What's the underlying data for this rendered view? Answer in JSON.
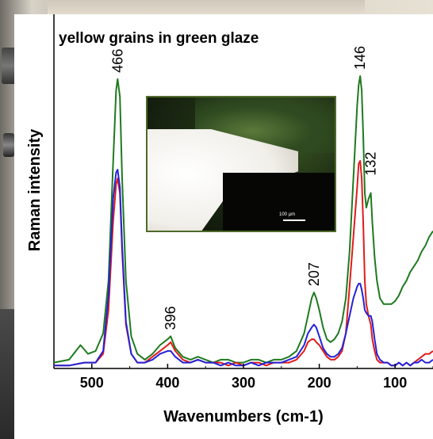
{
  "chart_data": {
    "type": "line",
    "title": "yellow grains in green glaze",
    "xlabel": "Wavenumbers (cm-1)",
    "ylabel": "Raman intensity",
    "xlim": [
      550,
      50
    ],
    "ylim": [
      0,
      1
    ],
    "x_reversed": true,
    "grid": false,
    "legend": "none",
    "x_ticks": [
      500,
      400,
      300,
      200,
      100
    ],
    "x_tick_labels": [
      "500",
      "400",
      "300",
      "200",
      "100"
    ],
    "peak_labels": [
      {
        "x": 466,
        "text": "466"
      },
      {
        "x": 396,
        "text": "396"
      },
      {
        "x": 207,
        "text": "207"
      },
      {
        "x": 146,
        "text": "146"
      },
      {
        "x": 132,
        "text": "132"
      }
    ],
    "inset_scale_label": "100 µm",
    "series": [
      {
        "color": "#1f7a1f",
        "x": [
          550,
          530,
          515,
          505,
          495,
          485,
          478,
          472,
          468,
          466,
          463,
          460,
          455,
          448,
          440,
          430,
          420,
          410,
          400,
          396,
          390,
          380,
          370,
          360,
          350,
          340,
          330,
          320,
          310,
          300,
          290,
          280,
          270,
          260,
          250,
          240,
          230,
          220,
          215,
          210,
          207,
          204,
          200,
          195,
          190,
          185,
          180,
          175,
          170,
          165,
          160,
          155,
          150,
          148,
          146,
          144,
          142,
          140,
          138,
          135,
          132,
          130,
          127,
          124,
          120,
          115,
          110,
          105,
          100,
          95,
          90,
          85,
          80,
          75,
          70,
          65,
          60,
          55,
          50
        ],
        "y": [
          0.02,
          0.03,
          0.08,
          0.05,
          0.06,
          0.12,
          0.3,
          0.7,
          0.95,
          0.99,
          0.93,
          0.65,
          0.3,
          0.11,
          0.05,
          0.03,
          0.05,
          0.08,
          0.1,
          0.11,
          0.07,
          0.04,
          0.03,
          0.04,
          0.03,
          0.02,
          0.03,
          0.03,
          0.02,
          0.02,
          0.03,
          0.03,
          0.02,
          0.03,
          0.03,
          0.04,
          0.06,
          0.12,
          0.18,
          0.24,
          0.26,
          0.24,
          0.2,
          0.14,
          0.1,
          0.09,
          0.1,
          0.12,
          0.16,
          0.24,
          0.4,
          0.65,
          0.9,
          0.97,
          1.0,
          0.95,
          0.8,
          0.6,
          0.55,
          0.58,
          0.6,
          0.5,
          0.38,
          0.3,
          0.24,
          0.22,
          0.22,
          0.22,
          0.23,
          0.25,
          0.28,
          0.3,
          0.33,
          0.35,
          0.37,
          0.4,
          0.42,
          0.45,
          0.47
        ]
      },
      {
        "color": "#e11b1b",
        "x": [
          550,
          530,
          510,
          495,
          485,
          478,
          472,
          468,
          466,
          463,
          460,
          455,
          448,
          440,
          430,
          420,
          410,
          400,
          396,
          390,
          380,
          370,
          360,
          350,
          340,
          330,
          320,
          310,
          300,
          290,
          280,
          270,
          260,
          250,
          240,
          230,
          220,
          215,
          210,
          207,
          204,
          200,
          195,
          190,
          185,
          180,
          175,
          170,
          165,
          160,
          155,
          150,
          148,
          146,
          144,
          142,
          140,
          138,
          135,
          132,
          130,
          127,
          124,
          120,
          115,
          110,
          105,
          100,
          95,
          90,
          85,
          80,
          75,
          70,
          65,
          60,
          55,
          50
        ],
        "y": [
          0.01,
          0.01,
          0.02,
          0.02,
          0.05,
          0.2,
          0.5,
          0.63,
          0.65,
          0.6,
          0.4,
          0.15,
          0.05,
          0.02,
          0.02,
          0.04,
          0.06,
          0.08,
          0.09,
          0.06,
          0.03,
          0.02,
          0.03,
          0.02,
          0.02,
          0.02,
          0.01,
          0.02,
          0.01,
          0.02,
          0.02,
          0.01,
          0.02,
          0.02,
          0.02,
          0.03,
          0.06,
          0.09,
          0.1,
          0.1,
          0.09,
          0.08,
          0.06,
          0.04,
          0.03,
          0.03,
          0.04,
          0.06,
          0.12,
          0.28,
          0.45,
          0.62,
          0.7,
          0.71,
          0.65,
          0.5,
          0.3,
          0.22,
          0.18,
          0.15,
          0.1,
          0.06,
          0.03,
          0.02,
          0.02,
          0.02,
          0.01,
          0.01,
          0.02,
          0.01,
          0.02,
          0.01,
          0.02,
          0.03,
          0.04,
          0.05,
          0.05,
          0.06
        ]
      },
      {
        "color": "#2323d8",
        "x": [
          550,
          530,
          510,
          495,
          485,
          478,
          472,
          468,
          466,
          463,
          460,
          455,
          448,
          440,
          430,
          420,
          410,
          400,
          396,
          390,
          380,
          370,
          360,
          350,
          340,
          330,
          320,
          310,
          300,
          290,
          280,
          270,
          260,
          250,
          240,
          230,
          220,
          215,
          210,
          207,
          204,
          200,
          195,
          190,
          185,
          180,
          175,
          170,
          165,
          160,
          155,
          150,
          148,
          146,
          144,
          142,
          140,
          138,
          135,
          132,
          130,
          127,
          124,
          120,
          115,
          110,
          105,
          100,
          95,
          90,
          85,
          80,
          75,
          70,
          65,
          60,
          55,
          50
        ],
        "y": [
          0.01,
          0.01,
          0.02,
          0.02,
          0.06,
          0.25,
          0.58,
          0.67,
          0.68,
          0.62,
          0.42,
          0.16,
          0.05,
          0.02,
          0.02,
          0.03,
          0.05,
          0.06,
          0.06,
          0.04,
          0.02,
          0.02,
          0.03,
          0.02,
          0.02,
          0.01,
          0.02,
          0.01,
          0.01,
          0.02,
          0.01,
          0.02,
          0.02,
          0.02,
          0.03,
          0.04,
          0.08,
          0.12,
          0.14,
          0.15,
          0.14,
          0.11,
          0.07,
          0.05,
          0.04,
          0.04,
          0.05,
          0.07,
          0.12,
          0.18,
          0.24,
          0.28,
          0.29,
          0.29,
          0.27,
          0.24,
          0.2,
          0.19,
          0.18,
          0.18,
          0.16,
          0.1,
          0.05,
          0.03,
          0.02,
          0.02,
          0.01,
          0.01,
          0.02,
          0.01,
          0.02,
          0.01,
          0.02,
          0.02,
          0.03,
          0.02,
          0.02,
          0.03
        ]
      }
    ]
  }
}
